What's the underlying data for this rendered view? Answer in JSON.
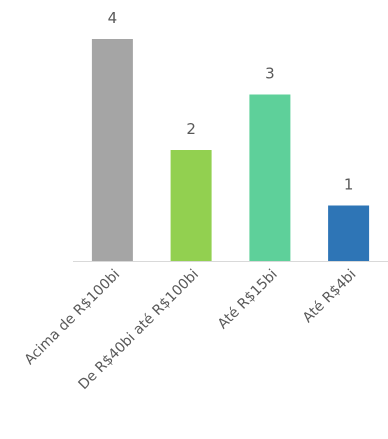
{
  "chart_data": {
    "type": "bar",
    "categories": [
      "Acima de R$100bi",
      "De R$40bi até R$100bi",
      "Até R$15bi",
      "Até R$4bi"
    ],
    "values": [
      4,
      2,
      3,
      1
    ],
    "colors": [
      "#a5a5a5",
      "#92d050",
      "#5ed09a",
      "#2e75b6"
    ],
    "axis_color": "#d9d9d9",
    "ylim": [
      0,
      4
    ],
    "grid": false,
    "legend": "none",
    "title": "",
    "xlabel": "",
    "ylabel": ""
  }
}
